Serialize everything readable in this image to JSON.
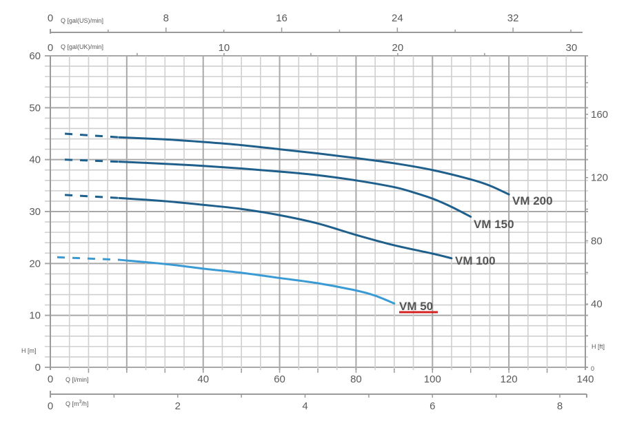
{
  "chart_data": {
    "type": "line",
    "title": "",
    "xlabel": "Q [l/min]",
    "ylabel": "H [m]",
    "xlim": [
      0,
      140
    ],
    "ylim": [
      0,
      60
    ],
    "grid": true,
    "legend_position": "inline labels at curve ends",
    "axes": {
      "bottom_primary": {
        "label": "Q [l/min]",
        "ticks": [
          0,
          40,
          60,
          80,
          100,
          120,
          140
        ],
        "range": [
          0,
          140
        ]
      },
      "bottom_secondary": {
        "label": "Q [m³/h]",
        "ticks": [
          0,
          2,
          4,
          6,
          8
        ],
        "range": [
          0,
          8.4
        ]
      },
      "top_primary": {
        "label": "Q [gal(US)/min]",
        "ticks": [
          0,
          8,
          16,
          24,
          32
        ],
        "range": [
          0,
          37
        ]
      },
      "top_secondary": {
        "label": "Q [gal(UK)/min]",
        "ticks": [
          0,
          10,
          20,
          30
        ],
        "range": [
          0,
          30.8
        ]
      },
      "left": {
        "label": "H [m]",
        "ticks": [
          0,
          10,
          20,
          30,
          40,
          50,
          60
        ],
        "range": [
          0,
          60
        ]
      },
      "right": {
        "label": "H [ft]",
        "ticks": [
          0,
          40,
          80,
          120,
          160
        ],
        "range": [
          0,
          197
        ]
      }
    },
    "series": [
      {
        "name": "VM 200",
        "color": "#1f5f8b",
        "dashed": {
          "x": [
            2,
            18
          ],
          "y": [
            45.0,
            44.3
          ]
        },
        "x": [
          18,
          30,
          40,
          50,
          60,
          70,
          80,
          90,
          100,
          110,
          115,
          120
        ],
        "y": [
          44.3,
          43.9,
          43.4,
          42.8,
          42.0,
          41.2,
          40.3,
          39.3,
          38.0,
          36.2,
          35.0,
          33.3
        ]
      },
      {
        "name": "VM 150",
        "color": "#1f5f8b",
        "dashed": {
          "x": [
            2,
            18
          ],
          "y": [
            40.0,
            39.6
          ]
        },
        "x": [
          18,
          30,
          40,
          50,
          60,
          70,
          80,
          90,
          95,
          100,
          105,
          110
        ],
        "y": [
          39.6,
          39.2,
          38.8,
          38.3,
          37.7,
          37.0,
          36.0,
          34.7,
          33.7,
          32.5,
          30.9,
          29.0
        ]
      },
      {
        "name": "VM 100",
        "color": "#1f5f8b",
        "dashed": {
          "x": [
            2,
            18
          ],
          "y": [
            33.2,
            32.6
          ]
        },
        "x": [
          18,
          30,
          40,
          50,
          60,
          70,
          80,
          90,
          100,
          105
        ],
        "y": [
          32.6,
          32.0,
          31.3,
          30.5,
          29.3,
          27.7,
          25.5,
          23.5,
          21.9,
          21.0
        ]
      },
      {
        "name": "VM 50",
        "color": "#3a9ad4",
        "dashed": {
          "x": [
            0,
            18
          ],
          "y": [
            21.2,
            20.7
          ]
        },
        "x": [
          18,
          30,
          40,
          50,
          60,
          70,
          80,
          85,
          90
        ],
        "y": [
          20.7,
          19.9,
          19.0,
          18.2,
          17.2,
          16.2,
          14.8,
          13.8,
          12.3
        ]
      }
    ],
    "annotations": [
      {
        "text": "VM 50",
        "underline_color": "#d42020"
      }
    ]
  },
  "labels": {
    "top_us_unit": "Q [gal(US)/min]",
    "top_uk_unit": "Q [gal(UK)/min]",
    "bottom_lmin_unit": "Q [l/min]",
    "bottom_m3h_unit_prefix": "Q [m",
    "bottom_m3h_unit_sup": "3",
    "bottom_m3h_unit_suffix": "/h]",
    "left_unit": "H [m]",
    "right_unit": "H [ft]",
    "curve_vm200": "VM 200",
    "curve_vm150": "VM 150",
    "curve_vm100": "VM 100",
    "curve_vm50": "VM 50"
  },
  "colors": {
    "grid_minor": "#cfcfcf",
    "grid_major": "#a8a8a8",
    "axis": "#9a9a9a",
    "dark_curve": "#1f5f8b",
    "light_curve": "#3a9ad4",
    "highlight_underline": "#d42020"
  }
}
